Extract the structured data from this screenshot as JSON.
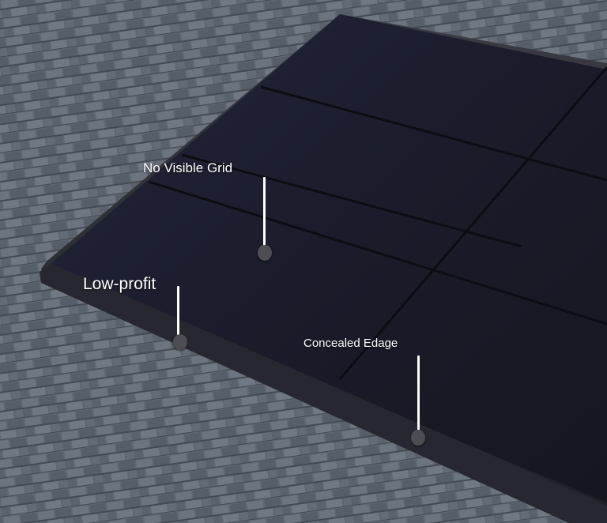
{
  "callouts": {
    "grid_label": "No Visible Grid",
    "profile_label": "Low-profit",
    "edge_label": "Concealed Edage"
  },
  "colors": {
    "roof_shingle_base": "#5d6570",
    "panel_dark": "#1b1d2a",
    "frame": "#2a2b33",
    "callout_text": "#ffffff",
    "callout_marker": "#4e4e52"
  }
}
